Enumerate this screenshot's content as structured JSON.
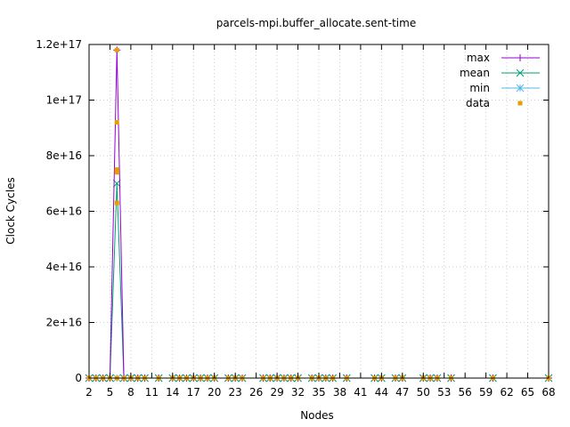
{
  "chart_data": {
    "type": "line",
    "title": "parcels-mpi.buffer_allocate.sent-time",
    "xlabel": "Nodes",
    "ylabel": "Clock Cycles",
    "xlim": [
      2,
      68
    ],
    "ylim": [
      0,
      1.2e+17
    ],
    "grid": true,
    "legend_position": "top-right",
    "x_ticks": [
      2,
      5,
      8,
      11,
      14,
      17,
      20,
      23,
      26,
      29,
      32,
      35,
      38,
      41,
      44,
      47,
      50,
      53,
      56,
      59,
      62,
      65,
      68
    ],
    "y_ticks": [
      {
        "value": 0,
        "label": "0"
      },
      {
        "value": 2e+16,
        "label": "2e+16"
      },
      {
        "value": 4e+16,
        "label": "4e+16"
      },
      {
        "value": 6e+16,
        "label": "6e+16"
      },
      {
        "value": 8e+16,
        "label": "8e+16"
      },
      {
        "value": 1e+17,
        "label": "1e+17"
      },
      {
        "value": 1.2e+17,
        "label": "1.2e+17"
      }
    ],
    "x": [
      2,
      3,
      4,
      5,
      6,
      7,
      8,
      9,
      10,
      12,
      14,
      15,
      16,
      17,
      18,
      19,
      20,
      22,
      23,
      24,
      27,
      28,
      29,
      30,
      31,
      32,
      34,
      35,
      36,
      37,
      39,
      43,
      44,
      46,
      47,
      50,
      51,
      52,
      54,
      60,
      68
    ],
    "series": [
      {
        "name": "max",
        "color": "#9400d3",
        "marker": "plus",
        "values": [
          0,
          0,
          0,
          0,
          1.18e+17,
          0,
          0,
          0,
          0,
          0,
          0,
          0,
          0,
          0,
          0,
          0,
          0,
          0,
          0,
          0,
          0,
          0,
          0,
          0,
          0,
          0,
          0,
          0,
          0,
          0,
          0,
          0,
          0,
          0,
          0,
          0,
          0,
          0,
          0,
          0,
          0
        ]
      },
      {
        "name": "mean",
        "color": "#009e73",
        "marker": "cross",
        "values": [
          0,
          0,
          0,
          0,
          7e+16,
          0,
          0,
          0,
          0,
          0,
          0,
          0,
          0,
          0,
          0,
          0,
          0,
          0,
          0,
          0,
          0,
          0,
          0,
          0,
          0,
          0,
          0,
          0,
          0,
          0,
          0,
          0,
          0,
          0,
          0,
          0,
          0,
          0,
          0,
          0,
          0
        ]
      },
      {
        "name": "min",
        "color": "#56b4e9",
        "marker": "star",
        "values": [
          0,
          0,
          0,
          0,
          0,
          0,
          0,
          0,
          0,
          0,
          0,
          0,
          0,
          0,
          0,
          0,
          0,
          0,
          0,
          0,
          0,
          0,
          0,
          0,
          0,
          0,
          0,
          0,
          0,
          0,
          0,
          0,
          0,
          0,
          0,
          0,
          0,
          0,
          0,
          0,
          0
        ]
      }
    ],
    "data_points": {
      "name": "data",
      "color": "#e69f00",
      "marker": "square",
      "points": [
        [
          2,
          0
        ],
        [
          3,
          0
        ],
        [
          4,
          0
        ],
        [
          5,
          0
        ],
        [
          6,
          0
        ],
        [
          7,
          0
        ],
        [
          8,
          0
        ],
        [
          9,
          0
        ],
        [
          10,
          0
        ],
        [
          12,
          0
        ],
        [
          14,
          0
        ],
        [
          15,
          0
        ],
        [
          16,
          0
        ],
        [
          17,
          0
        ],
        [
          18,
          0
        ],
        [
          19,
          0
        ],
        [
          20,
          0
        ],
        [
          22,
          0
        ],
        [
          23,
          0
        ],
        [
          24,
          0
        ],
        [
          27,
          0
        ],
        [
          28,
          0
        ],
        [
          29,
          0
        ],
        [
          30,
          0
        ],
        [
          31,
          0
        ],
        [
          32,
          0
        ],
        [
          34,
          0
        ],
        [
          35,
          0
        ],
        [
          36,
          0
        ],
        [
          37,
          0
        ],
        [
          39,
          0
        ],
        [
          43,
          0
        ],
        [
          44,
          0
        ],
        [
          46,
          0
        ],
        [
          47,
          0
        ],
        [
          50,
          0
        ],
        [
          51,
          0
        ],
        [
          52,
          0
        ],
        [
          54,
          0
        ],
        [
          60,
          0
        ],
        [
          68,
          0
        ],
        [
          6,
          1.18e+17
        ],
        [
          6,
          9.2e+16
        ],
        [
          6,
          7.5e+16
        ],
        [
          6,
          7.4e+16
        ],
        [
          6,
          6.3e+16
        ]
      ]
    }
  }
}
